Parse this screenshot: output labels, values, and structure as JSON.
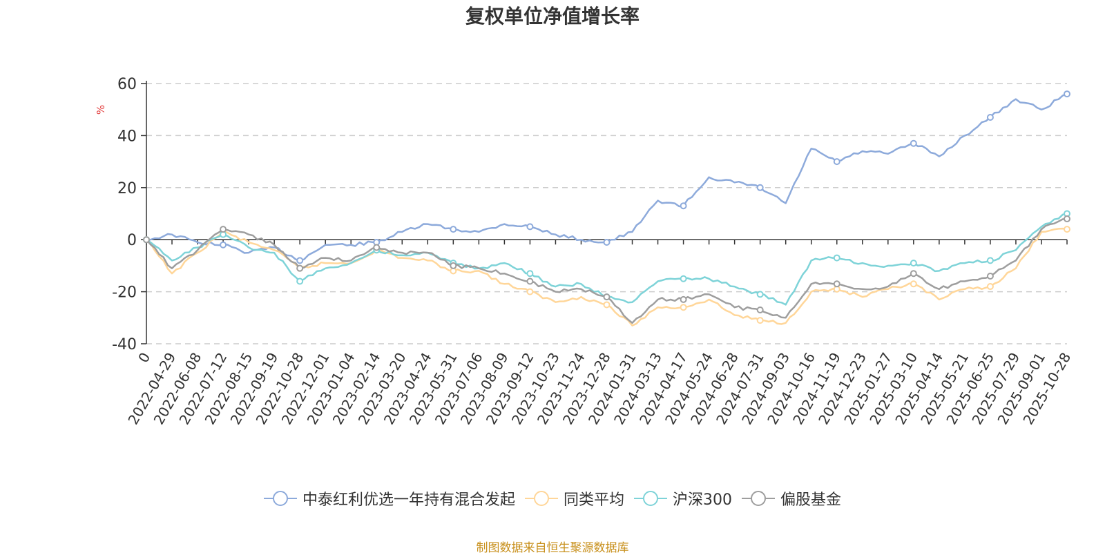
{
  "chart_data": {
    "type": "line",
    "title": "复权单位净值增长率",
    "ylabel": "%",
    "ylim": [
      -40,
      60
    ],
    "yticks": [
      "60",
      "40",
      "20",
      "0",
      "-20",
      "-40"
    ],
    "categories": [
      "0",
      "2022-04-29",
      "2022-06-08",
      "2022-07-12",
      "2022-08-15",
      "2022-09-19",
      "2022-10-28",
      "2022-12-01",
      "2023-01-04",
      "2023-02-14",
      "2023-03-20",
      "2023-04-24",
      "2023-05-31",
      "2023-07-06",
      "2023-08-09",
      "2023-09-12",
      "2023-10-23",
      "2023-11-24",
      "2023-12-28",
      "2024-01-31",
      "2024-03-13",
      "2024-04-17",
      "2024-05-24",
      "2024-06-28",
      "2024-07-31",
      "2024-09-03",
      "2024-10-16",
      "2024-11-19",
      "2024-12-23",
      "2025-01-27",
      "2025-03-10",
      "2025-04-14",
      "2025-05-21",
      "2025-06-25",
      "2025-07-29",
      "2025-09-01",
      "2025-10-28"
    ],
    "series": [
      {
        "name": "中泰红利优选一年持有混合发起",
        "color": "#8daadb",
        "values": [
          0,
          2,
          -1,
          -2,
          -5,
          -3,
          -8,
          -2,
          -2,
          -1,
          3,
          6,
          4,
          3,
          6,
          5,
          2,
          0,
          -1,
          3,
          15,
          13,
          24,
          22,
          20,
          14,
          35,
          30,
          34,
          33,
          37,
          32,
          40,
          47,
          54,
          50,
          56
        ]
      },
      {
        "name": "同类平均",
        "color": "#ffd699",
        "values": [
          0,
          -13,
          -5,
          3,
          -1,
          -4,
          -11,
          -9,
          -9,
          -4,
          -7,
          -8,
          -12,
          -12,
          -17,
          -20,
          -24,
          -22,
          -25,
          -33,
          -26,
          -26,
          -23,
          -29,
          -31,
          -32,
          -20,
          -19,
          -22,
          -19,
          -17,
          -23,
          -19,
          -18,
          -11,
          3,
          4
        ]
      },
      {
        "name": "沪深300",
        "color": "#7ed3d8",
        "values": [
          0,
          -8,
          -3,
          2,
          -3,
          -5,
          -16,
          -11,
          -9,
          -4,
          -6,
          -5,
          -9,
          -11,
          -9,
          -13,
          -18,
          -17,
          -22,
          -24,
          -16,
          -15,
          -15,
          -18,
          -21,
          -25,
          -8,
          -7,
          -9,
          -10,
          -9,
          -12,
          -9,
          -8,
          -4,
          5,
          10
        ]
      },
      {
        "name": "偏股基金",
        "color": "#9e9e9e",
        "values": [
          0,
          -11,
          -4,
          4,
          2,
          -2,
          -11,
          -7,
          -8,
          -3,
          -5,
          -5,
          -10,
          -11,
          -13,
          -16,
          -20,
          -19,
          -22,
          -32,
          -23,
          -23,
          -21,
          -26,
          -27,
          -30,
          -17,
          -17,
          -19,
          -18,
          -13,
          -19,
          -16,
          -14,
          -8,
          4,
          8
        ]
      }
    ]
  },
  "footer": {
    "source": "制图数据来自恒生聚源数据库"
  }
}
